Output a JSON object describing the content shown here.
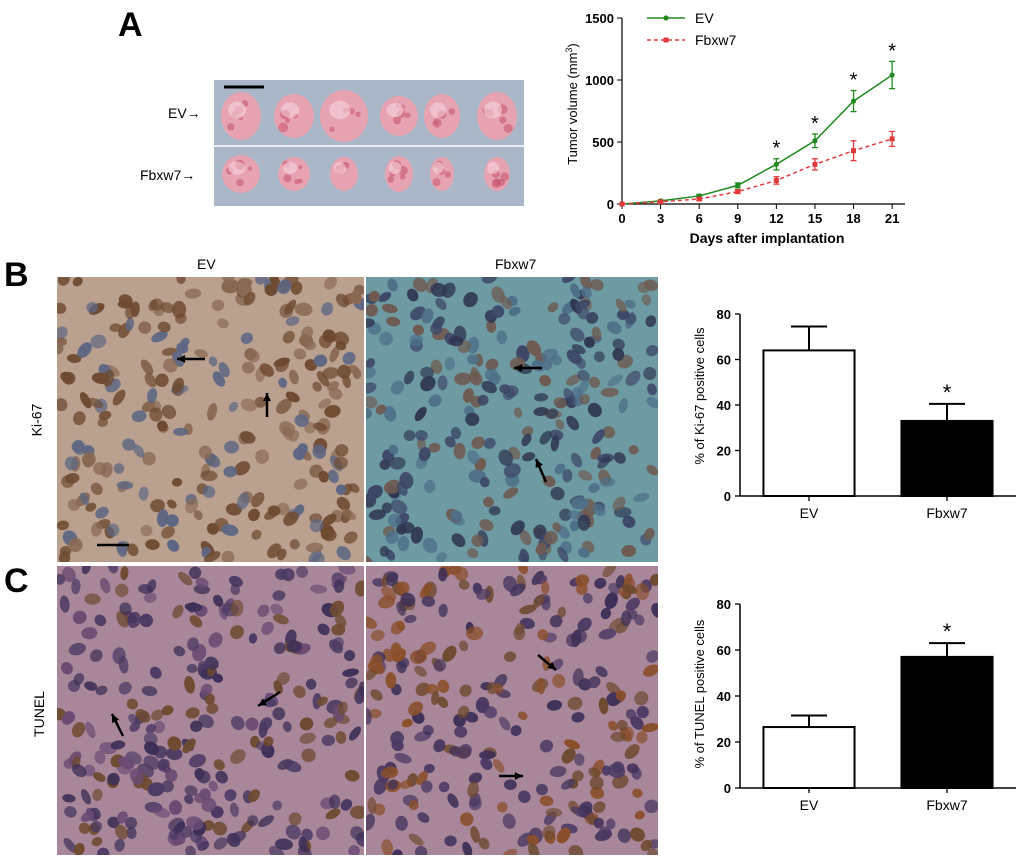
{
  "panels": {
    "a": "A",
    "b": "B",
    "c": "C"
  },
  "photo_a": {
    "row_labels": [
      "EV→",
      "Fbxw7→"
    ],
    "tumor_counts": [
      6,
      6
    ],
    "colors": {
      "background": "#a9b7c9",
      "tumor": "#e7a3b1",
      "tumor_dark": "#c7546c"
    }
  },
  "histology": {
    "column_labels": [
      "EV",
      "Fbxw7"
    ],
    "row_labels": [
      "Ki-67",
      "TUNEL"
    ],
    "colors": {
      "ki67_ev_bg": "#b9a08f",
      "ki67_fbxw7_bg": "#6e9aa3",
      "tunel_bg": "#a9879b",
      "nucleus_brown": "#6e4a30",
      "nucleus_blue": "#3d4767",
      "nucleus_purple": "#4b3a63"
    }
  },
  "chart_data": [
    {
      "id": "tumor-volume",
      "type": "line",
      "x": [
        0,
        3,
        6,
        9,
        12,
        15,
        18,
        21
      ],
      "xlabel": "Days after implantation",
      "ylabel": "Tumor volume (mm3)",
      "ylabel_main": "Tumor volume (mm",
      "ylabel_sup": "3",
      "ylabel_end": ")",
      "xlim": [
        0,
        22
      ],
      "ylim": [
        0,
        1500
      ],
      "xticks": [
        0,
        3,
        6,
        9,
        12,
        15,
        18,
        21
      ],
      "yticks": [
        0,
        500,
        1000,
        1500
      ],
      "legend": "top-left",
      "series": [
        {
          "name": "EV",
          "color": "#1f8a1f",
          "dashed": false,
          "values": [
            0,
            25,
            65,
            150,
            320,
            510,
            830,
            1040
          ],
          "errors": [
            0,
            8,
            12,
            20,
            45,
            55,
            85,
            110
          ]
        },
        {
          "name": "Fbxw7",
          "color": "#e03a3a",
          "dashed": true,
          "values": [
            0,
            18,
            40,
            100,
            190,
            320,
            430,
            525
          ],
          "errors": [
            0,
            6,
            10,
            15,
            30,
            45,
            80,
            60
          ]
        }
      ],
      "significance": [
        {
          "x": 12,
          "label": "*"
        },
        {
          "x": 15,
          "label": "*"
        },
        {
          "x": 18,
          "label": "*"
        },
        {
          "x": 21,
          "label": "*"
        }
      ]
    },
    {
      "id": "ki67-bar",
      "type": "bar",
      "categories": [
        "EV",
        "Fbxw7"
      ],
      "values": [
        64,
        33
      ],
      "errors": [
        10.5,
        7.5
      ],
      "fills": [
        "#ffffff",
        "#000000"
      ],
      "ylabel": "% of Ki-67 positive cells",
      "ylim": [
        0,
        80
      ],
      "yticks": [
        0,
        20,
        40,
        60,
        80
      ],
      "significance": [
        {
          "category": "Fbxw7",
          "label": "*"
        }
      ]
    },
    {
      "id": "tunel-bar",
      "type": "bar",
      "categories": [
        "EV",
        "Fbxw7"
      ],
      "values": [
        26.5,
        57
      ],
      "errors": [
        5,
        6
      ],
      "fills": [
        "#ffffff",
        "#000000"
      ],
      "ylabel": "% of TUNEL positive cells",
      "ylim": [
        0,
        80
      ],
      "yticks": [
        0,
        20,
        40,
        60,
        80
      ],
      "significance": [
        {
          "category": "Fbxw7",
          "label": "*"
        }
      ]
    }
  ]
}
